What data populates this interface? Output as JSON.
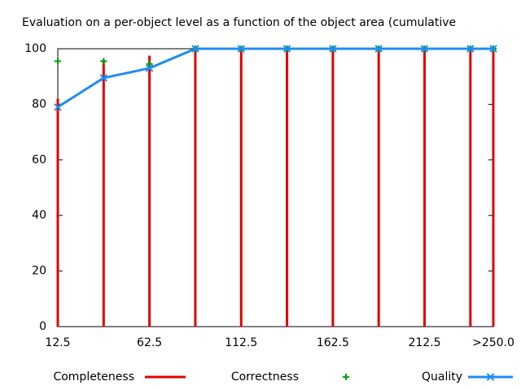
{
  "chart_data": {
    "type": "line",
    "title": "Evaluation on a per-object level as a function of the object area (cumulative",
    "x": [
      12.5,
      37.5,
      62.5,
      87.5,
      112.5,
      137.5,
      162.5,
      187.5,
      212.5,
      237.5,
      250
    ],
    "xlim": [
      12.5,
      250
    ],
    "xticks": [
      12.5,
      62.5,
      112.5,
      162.5,
      212.5,
      {
        "value": 250,
        "label": ">250.0"
      }
    ],
    "ylim": [
      0,
      100
    ],
    "yticks": [
      0,
      20,
      40,
      60,
      80,
      100
    ],
    "legend": "bottom",
    "series": [
      {
        "name": "Completeness",
        "color": "#e00000",
        "style": "impulses",
        "values": [
          82,
          96,
          97.5,
          100,
          100,
          100,
          100,
          100,
          100,
          100,
          100
        ]
      },
      {
        "name": "Correctness",
        "color": "#00a000",
        "style": "points",
        "values": [
          95.5,
          95.5,
          94.5,
          100,
          100,
          100,
          100,
          100,
          100,
          100,
          100
        ]
      },
      {
        "name": "Quality",
        "color": "#1e8cf0",
        "style": "linespoints",
        "values": [
          79,
          89.5,
          93,
          100,
          100,
          100,
          100,
          100,
          100,
          100,
          100
        ]
      }
    ]
  }
}
